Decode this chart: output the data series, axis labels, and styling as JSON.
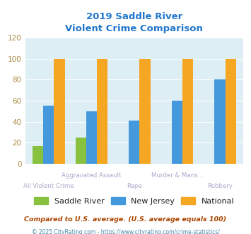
{
  "title_line1": "2019 Saddle River",
  "title_line2": "Violent Crime Comparison",
  "title_color": "#2277cc",
  "groups": [
    "All Violent Crime",
    "Aggravated Assault",
    "Rape",
    "Murder & Mans...",
    "Robbery"
  ],
  "saddle_river": [
    17,
    25,
    0,
    0,
    0
  ],
  "new_jersey": [
    55,
    50,
    41,
    60,
    80
  ],
  "national": [
    100,
    100,
    100,
    100,
    100
  ],
  "color_saddle": "#88c040",
  "color_nj": "#4499dd",
  "color_national": "#f5a623",
  "ylim": [
    0,
    120
  ],
  "yticks": [
    0,
    20,
    40,
    60,
    80,
    100,
    120
  ],
  "bg_color": "#ddeef5",
  "footnote": "Compared to U.S. average. (U.S. average equals 100)",
  "footnote2": "© 2025 CityRating.com - https://www.cityrating.com/crime-statistics/",
  "footnote_color": "#aa4400",
  "footnote2_color": "#4488aa",
  "label_color": "#aaaacc",
  "ytick_color": "#aa8844"
}
